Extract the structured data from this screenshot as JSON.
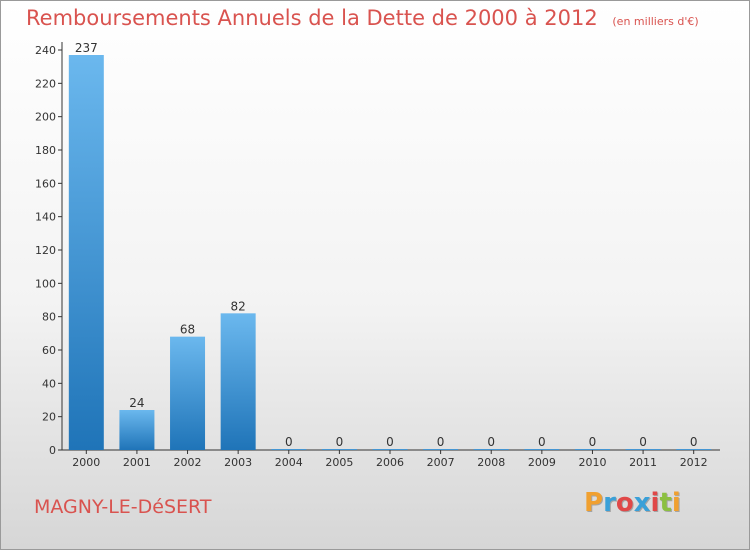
{
  "header": {
    "title": "Remboursements Annuels de la Dette de 2000 à 2012",
    "subtitle": "(en milliers d'€)"
  },
  "footer": {
    "commune": "MAGNY-LE-DéSERT",
    "logo_text": "Proxiti",
    "logo_colors": [
      "#f0a030",
      "#3aa0d8",
      "#e04848",
      "#3aa0d8",
      "#e04848",
      "#8cc040",
      "#f0a030"
    ]
  },
  "colors": {
    "bar_light": "#6bb8ee",
    "bar_dark": "#1f74b8",
    "title": "#d9534f",
    "axis": "#333333"
  },
  "chart_data": {
    "type": "bar",
    "title": "Remboursements Annuels de la Dette de 2000 à 2012",
    "xlabel": "",
    "ylabel": "",
    "categories": [
      "2000",
      "2001",
      "2002",
      "2003",
      "2004",
      "2005",
      "2006",
      "2007",
      "2008",
      "2009",
      "2010",
      "2011",
      "2012"
    ],
    "values": [
      237,
      24,
      68,
      82,
      0,
      0,
      0,
      0,
      0,
      0,
      0,
      0,
      0
    ],
    "ylim": [
      0,
      240
    ],
    "yticks": [
      0,
      20,
      40,
      60,
      80,
      100,
      120,
      140,
      160,
      180,
      200,
      220,
      240
    ],
    "grid": false
  }
}
